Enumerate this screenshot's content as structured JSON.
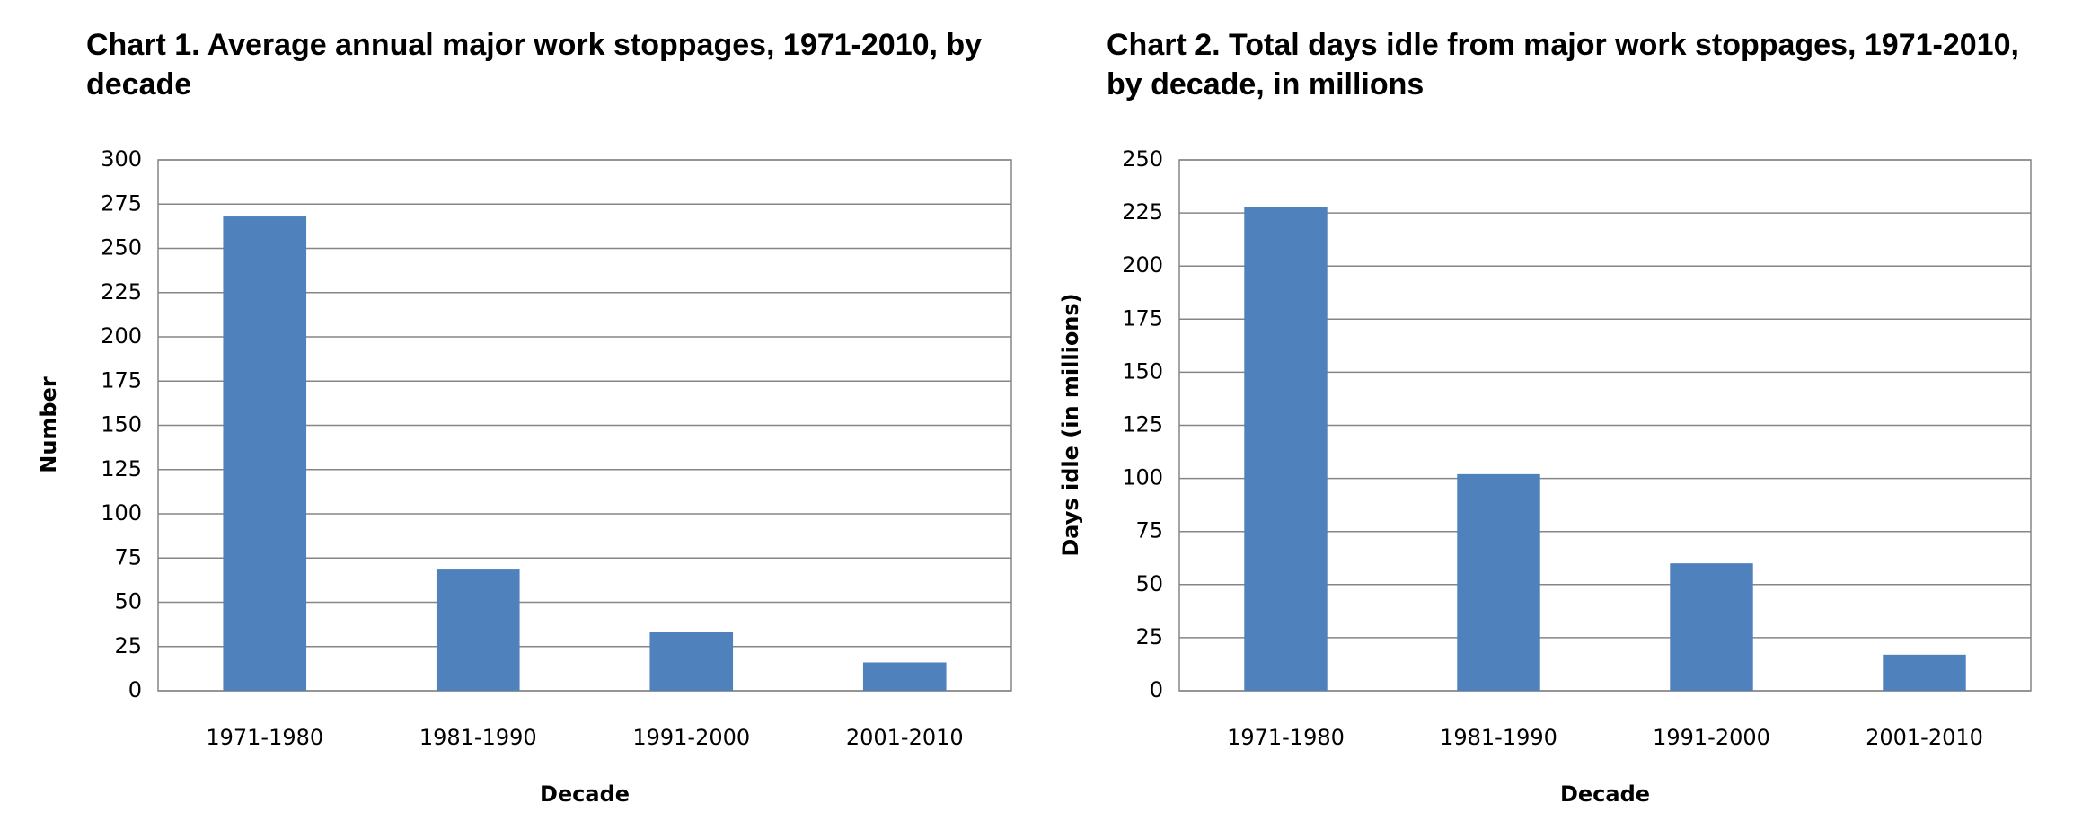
{
  "chart_data": [
    {
      "type": "bar",
      "title": "Chart 1. Average annual major work stoppages, 1971-2010, by decade",
      "categories": [
        "1971-1980",
        "1981-1990",
        "1991-2000",
        "2001-2010"
      ],
      "values": [
        268,
        69,
        33,
        16
      ],
      "color": "#4f81bd",
      "xlabel": "Decade",
      "ylabel": "Number",
      "ylim": [
        0,
        300
      ],
      "yticks": [
        0,
        25,
        50,
        75,
        100,
        125,
        150,
        175,
        200,
        225,
        250,
        275,
        300
      ],
      "grid": true
    },
    {
      "type": "bar",
      "title": "Chart 2. Total days idle from major work stoppages, 1971-2010, by decade, in millions",
      "categories": [
        "1971-1980",
        "1981-1990",
        "1991-2000",
        "2001-2010"
      ],
      "values": [
        228,
        102,
        60,
        17
      ],
      "color": "#4f81bd",
      "xlabel": "Decade",
      "ylabel": "Days idle (in millions)",
      "ylim": [
        0,
        250
      ],
      "yticks": [
        0,
        25,
        50,
        75,
        100,
        125,
        150,
        175,
        200,
        225,
        250
      ],
      "grid": true
    }
  ]
}
